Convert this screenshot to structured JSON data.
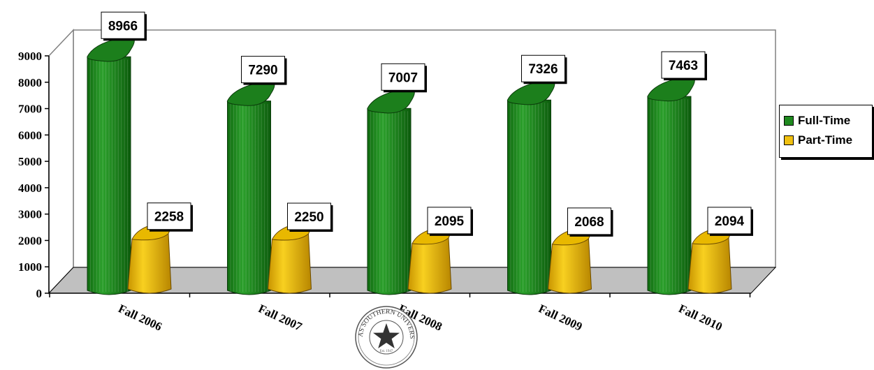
{
  "chart_data": {
    "type": "bar",
    "categories": [
      "Fall 2006",
      "Fall 2007",
      "Fall 2008",
      "Fall 2009",
      "Fall 2010"
    ],
    "series": [
      {
        "name": "Full-Time",
        "values": [
          8966,
          7290,
          7007,
          7326,
          7463
        ],
        "color": "#1f8a1f"
      },
      {
        "name": "Part-Time",
        "values": [
          2258,
          2250,
          2095,
          2068,
          2094
        ],
        "color": "#f0c010"
      }
    ],
    "yticks": [
      "0",
      "1000",
      "2000",
      "3000",
      "4000",
      "5000",
      "6000",
      "7000",
      "8000",
      "9000"
    ],
    "ylim": [
      0,
      9000
    ],
    "grid": false,
    "legend": "right",
    "title": "",
    "xlabel": "",
    "ylabel": ""
  },
  "seal": {
    "text": "TEXAS SOUTHERN UNIVERSITY",
    "est": "Est. 1947"
  }
}
